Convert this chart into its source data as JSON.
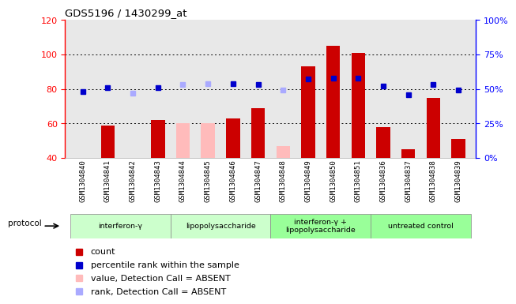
{
  "title": "GDS5196 / 1430299_at",
  "samples": [
    "GSM1304840",
    "GSM1304841",
    "GSM1304842",
    "GSM1304843",
    "GSM1304844",
    "GSM1304845",
    "GSM1304846",
    "GSM1304847",
    "GSM1304848",
    "GSM1304849",
    "GSM1304850",
    "GSM1304851",
    "GSM1304836",
    "GSM1304837",
    "GSM1304838",
    "GSM1304839"
  ],
  "bar_values": [
    40,
    59,
    40,
    62,
    60,
    60,
    63,
    69,
    47,
    93,
    105,
    101,
    58,
    45,
    75,
    51
  ],
  "bar_colors": [
    "#cc0000",
    "#cc0000",
    "#cc0000",
    "#cc0000",
    "#ffbbbb",
    "#ffbbbb",
    "#cc0000",
    "#cc0000",
    "#ffbbbb",
    "#cc0000",
    "#cc0000",
    "#cc0000",
    "#cc0000",
    "#cc0000",
    "#cc0000",
    "#cc0000"
  ],
  "rank_values_pct": [
    48,
    51,
    47,
    51,
    53,
    54,
    54,
    53,
    49,
    57,
    58,
    58,
    52,
    46,
    53,
    49
  ],
  "rank_colors": [
    "#0000cc",
    "#0000cc",
    "#aaaaff",
    "#0000cc",
    "#aaaaff",
    "#aaaaff",
    "#0000cc",
    "#0000cc",
    "#aaaaff",
    "#0000cc",
    "#0000cc",
    "#0000cc",
    "#0000cc",
    "#0000cc",
    "#0000cc",
    "#0000cc"
  ],
  "ylim_left": [
    40,
    120
  ],
  "ylim_right": [
    0,
    100
  ],
  "yticks_left": [
    40,
    60,
    80,
    100,
    120
  ],
  "ytick_labels_right": [
    "0%",
    "25%",
    "50%",
    "75%",
    "100%"
  ],
  "yticks_right": [
    0,
    25,
    50,
    75,
    100
  ],
  "grid_values": [
    60,
    80,
    100
  ],
  "protocol_groups": [
    {
      "label": "interferon-γ",
      "start": 0,
      "end": 3,
      "color": "#ccffcc"
    },
    {
      "label": "lipopolysaccharide",
      "start": 4,
      "end": 7,
      "color": "#ccffcc"
    },
    {
      "label": "interferon-γ +\nlipopolysaccharide",
      "start": 8,
      "end": 11,
      "color": "#99ff99"
    },
    {
      "label": "untreated control",
      "start": 12,
      "end": 15,
      "color": "#99ff99"
    }
  ],
  "legend_items": [
    {
      "label": "count",
      "color": "#cc0000"
    },
    {
      "label": "percentile rank within the sample",
      "color": "#0000cc"
    },
    {
      "label": "value, Detection Call = ABSENT",
      "color": "#ffbbbb"
    },
    {
      "label": "rank, Detection Call = ABSENT",
      "color": "#aaaaff"
    }
  ],
  "protocol_label": "protocol",
  "bg_color": "#e8e8e8"
}
